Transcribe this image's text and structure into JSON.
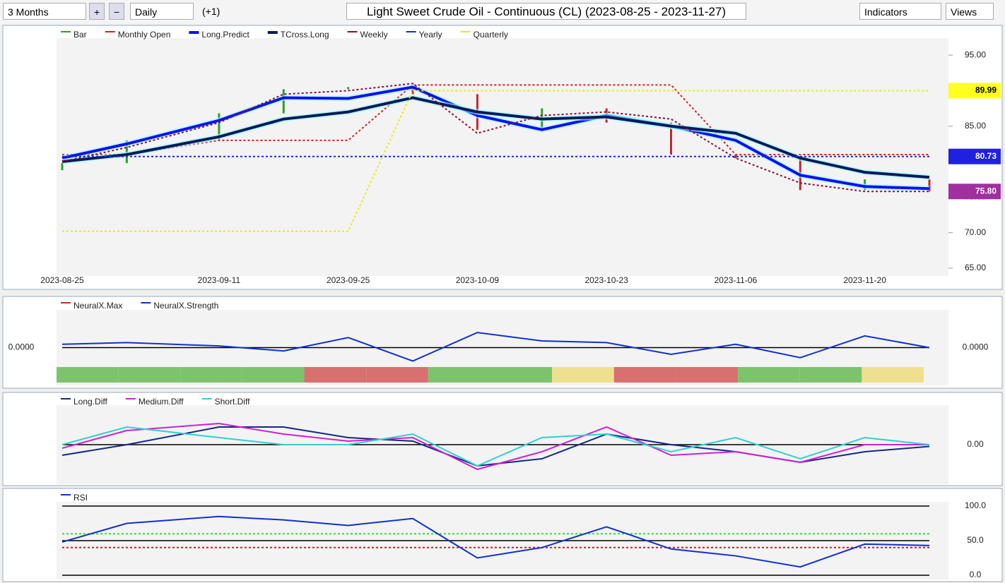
{
  "toolbar": {
    "range": "3 Months",
    "interval": "Daily",
    "offset": "(+1)",
    "title": "Light Sweet Crude Oil - Continuous (CL) (2023-08-25 - 2023-11-27)",
    "indicators": "Indicators",
    "views": "Views"
  },
  "chart_data": [
    {
      "type": "line",
      "x": [
        "2023-08-25",
        "2023-09-01",
        "2023-09-11",
        "2023-09-18",
        "2023-09-25",
        "2023-10-02",
        "2023-10-09",
        "2023-10-16",
        "2023-10-23",
        "2023-10-30",
        "2023-11-06",
        "2023-11-13",
        "2023-11-20",
        "2023-11-27"
      ],
      "xlim": [
        "2023-08-25",
        "2023-11-27"
      ],
      "xticks": [
        "2023-08-25",
        "2023-09-11",
        "2023-09-25",
        "2023-10-09",
        "2023-10-23",
        "2023-11-06",
        "2023-11-20"
      ],
      "ylim": [
        64.5,
        96.8
      ],
      "yticks": [
        {
          "value": 65,
          "label": "65.00"
        },
        {
          "value": 70,
          "label": "70.00"
        },
        {
          "value": 75,
          "label": "75.00"
        },
        {
          "value": 80,
          "label": "80.00"
        },
        {
          "value": 85,
          "label": "85.00"
        },
        {
          "value": 90,
          "label": "90.00"
        },
        {
          "value": 95,
          "label": "95.00"
        }
      ],
      "series": [
        {
          "name": "Bar",
          "color": "#2e9e2e",
          "down_color": "#c0282d",
          "style": "bars",
          "values": [
            79.8,
            83,
            86.8,
            90.2,
            90.5,
            89.5,
            84.5,
            87.5,
            85.5,
            81,
            80.5,
            76,
            77.5,
            75.8
          ]
        },
        {
          "name": "Monthly Open",
          "color": "#d42020",
          "style": "dotted",
          "values": [
            81,
            81,
            83,
            83,
            83,
            90.8,
            90.8,
            90.8,
            90.8,
            90.8,
            81,
            81,
            81,
            81
          ]
        },
        {
          "name": "Long.Predict",
          "color": "#1010f0",
          "style": "thick",
          "values": [
            80.5,
            82.5,
            85.8,
            89,
            88.9,
            90.5,
            86.5,
            84.5,
            86.5,
            85,
            83,
            78.1,
            76.5,
            76.2
          ]
        },
        {
          "name": "TCross.Long",
          "color": "#0a1a5a",
          "style": "thick",
          "values": [
            80,
            81,
            83.5,
            86,
            87,
            89,
            87,
            86,
            86.3,
            85,
            84,
            80.5,
            78.5,
            77.8
          ]
        },
        {
          "name": "Weekly",
          "color": "#8a1030",
          "style": "dotted",
          "values": [
            80,
            82,
            85.5,
            89.5,
            90,
            91,
            84,
            86.5,
            87,
            86,
            80.5,
            77,
            75.8,
            75.8
          ]
        },
        {
          "name": "Yearly",
          "color": "#1a2ad0",
          "style": "dotted",
          "values": [
            80.73,
            80.73,
            80.73,
            80.73,
            80.73,
            80.73,
            80.73,
            80.73,
            80.73,
            80.73,
            80.73,
            80.73,
            80.73,
            80.73
          ]
        },
        {
          "name": "Quarterly",
          "color": "#e8e820",
          "style": "dotted",
          "values": [
            70.2,
            70.2,
            70.2,
            70.2,
            70.2,
            89.99,
            89.99,
            89.99,
            89.99,
            89.99,
            89.99,
            89.99,
            89.99,
            89.99
          ]
        }
      ],
      "price_tags": [
        89.99,
        80.73,
        {
          "value": 75.8,
          "label": "75.80"
        }
      ],
      "price_tag_colors": [
        "#ffff20",
        "#2020e0",
        "#a030a0"
      ]
    },
    {
      "type": "line",
      "x": [
        "2023-08-25",
        "2023-09-01",
        "2023-09-11",
        "2023-09-18",
        "2023-09-25",
        "2023-10-02",
        "2023-10-09",
        "2023-10-16",
        "2023-10-23",
        "2023-10-30",
        "2023-11-06",
        "2023-11-13",
        "2023-11-20",
        "2023-11-27"
      ],
      "xlim": [
        "2023-08-25",
        "2023-11-27"
      ],
      "ylim": [
        -1,
        1
      ],
      "yticks": [
        {
          "value": 0,
          "label": "0.0000"
        }
      ],
      "series": [
        {
          "name": "NeuralX.Max",
          "color": "#c03030",
          "style": "strip",
          "colors": [
            "#7cc46c",
            "#7cc46c",
            "#7cc46c",
            "#7cc46c",
            "#d87070",
            "#d87070",
            "#7cc46c",
            "#7cc46c",
            "#efe090",
            "#d87070",
            "#d87070",
            "#7cc46c",
            "#7cc46c",
            "#efe090"
          ]
        },
        {
          "name": "NeuralX.Strength",
          "color": "#1030d0",
          "style": "normal",
          "values": [
            0.1,
            0.15,
            0.05,
            -0.1,
            0.3,
            -0.4,
            0.45,
            0.2,
            0.15,
            -0.2,
            0.1,
            -0.3,
            0.35,
            0
          ]
        }
      ]
    },
    {
      "type": "line",
      "x": [
        "2023-08-25",
        "2023-09-01",
        "2023-09-11",
        "2023-09-18",
        "2023-09-25",
        "2023-10-02",
        "2023-10-09",
        "2023-10-16",
        "2023-10-23",
        "2023-10-30",
        "2023-11-06",
        "2023-11-13",
        "2023-11-20",
        "2023-11-27"
      ],
      "xlim": [
        "2023-08-25",
        "2023-11-27"
      ],
      "ylim": [
        -1,
        1
      ],
      "yticks": [
        {
          "value": 0,
          "label": "0.00"
        }
      ],
      "series": [
        {
          "name": "Long.Diff",
          "color": "#102a80",
          "style": "normal",
          "values": [
            -0.3,
            0,
            0.5,
            0.5,
            0.2,
            0.1,
            -0.6,
            -0.4,
            0.3,
            0,
            -0.2,
            -0.5,
            -0.2,
            -0.05
          ]
        },
        {
          "name": "Medium.Diff",
          "color": "#d020d0",
          "style": "normal",
          "values": [
            -0.1,
            0.4,
            0.6,
            0.3,
            0.1,
            0.2,
            -0.7,
            -0.2,
            0.5,
            -0.3,
            -0.2,
            -0.5,
            0,
            0
          ]
        },
        {
          "name": "Short.Diff",
          "color": "#30d0d0",
          "style": "normal",
          "values": [
            0,
            0.5,
            0.2,
            0,
            0,
            0.3,
            -0.6,
            0.2,
            0.3,
            -0.2,
            0.2,
            -0.4,
            0.2,
            0
          ]
        }
      ]
    },
    {
      "type": "line",
      "x": [
        "2023-08-25",
        "2023-09-01",
        "2023-09-11",
        "2023-09-18",
        "2023-09-25",
        "2023-10-02",
        "2023-10-09",
        "2023-10-16",
        "2023-10-23",
        "2023-10-30",
        "2023-11-06",
        "2023-11-13",
        "2023-11-20",
        "2023-11-27"
      ],
      "xlim": [
        "2023-08-25",
        "2023-11-27"
      ],
      "ylim": [
        0,
        100
      ],
      "yticks": [
        {
          "value": 0,
          "label": "0.0"
        },
        {
          "value": 50,
          "label": "50.0"
        },
        {
          "value": 100,
          "label": "100.0"
        }
      ],
      "levels": [
        60,
        40
      ],
      "level_colors": [
        "#30e030",
        "#d02020"
      ],
      "series": [
        {
          "name": "RSI",
          "color": "#1030d0",
          "style": "normal",
          "values": [
            48,
            75,
            85,
            80,
            72,
            82,
            25,
            40,
            70,
            38,
            28,
            12,
            45,
            43
          ]
        }
      ]
    }
  ]
}
